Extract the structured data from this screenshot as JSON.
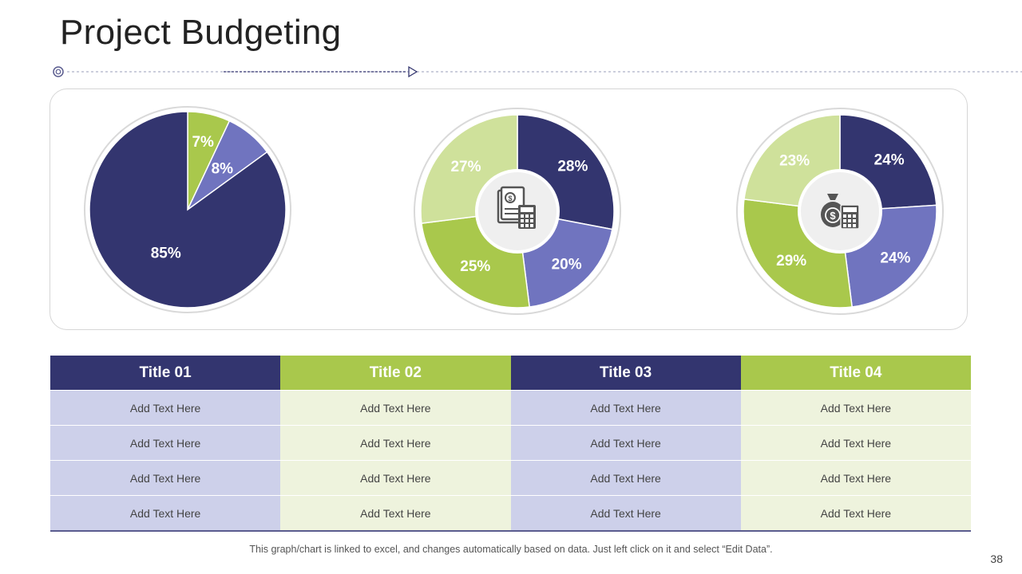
{
  "page": {
    "title": "Project Budgeting",
    "page_number": "38"
  },
  "colors": {
    "navy": "#33356f",
    "green": "#a9c84c",
    "purple": "#7074bf",
    "light_green": "#cfe19b"
  },
  "chart_data": [
    {
      "type": "pie",
      "title": "",
      "values": [
        7,
        8,
        85
      ],
      "labels": [
        "7%",
        "8%",
        "85%"
      ],
      "colors": [
        "#a9c84c",
        "#7074bf",
        "#33356f"
      ]
    },
    {
      "type": "pie",
      "title": "",
      "values": [
        28,
        20,
        25,
        27
      ],
      "labels": [
        "28%",
        "20%",
        "25%",
        "27%"
      ],
      "colors": [
        "#33356f",
        "#7074bf",
        "#a9c84c",
        "#cfe19b"
      ],
      "center_icon": "budget-calculator-icon"
    },
    {
      "type": "pie",
      "title": "",
      "values": [
        24,
        24,
        29,
        23
      ],
      "labels": [
        "24%",
        "24%",
        "29%",
        "23%"
      ],
      "colors": [
        "#33356f",
        "#7074bf",
        "#a9c84c",
        "#cfe19b"
      ],
      "center_icon": "money-bag-calculator-icon"
    }
  ],
  "table": {
    "headers": [
      "Title  01",
      "Title  02",
      "Title  03",
      "Title  04"
    ],
    "rows": [
      [
        "Add Text Here",
        "Add Text Here",
        "Add Text Here",
        "Add Text Here"
      ],
      [
        "Add Text Here",
        "Add Text Here",
        "Add Text Here",
        "Add Text Here"
      ],
      [
        "Add Text Here",
        "Add Text Here",
        "Add Text Here",
        "Add Text Here"
      ],
      [
        "Add Text Here",
        "Add Text Here",
        "Add Text Here",
        "Add Text Here"
      ]
    ]
  },
  "footer": {
    "note": "This graph/chart is linked to excel, and changes automatically based on data. Just left click on it and select “Edit Data”."
  }
}
